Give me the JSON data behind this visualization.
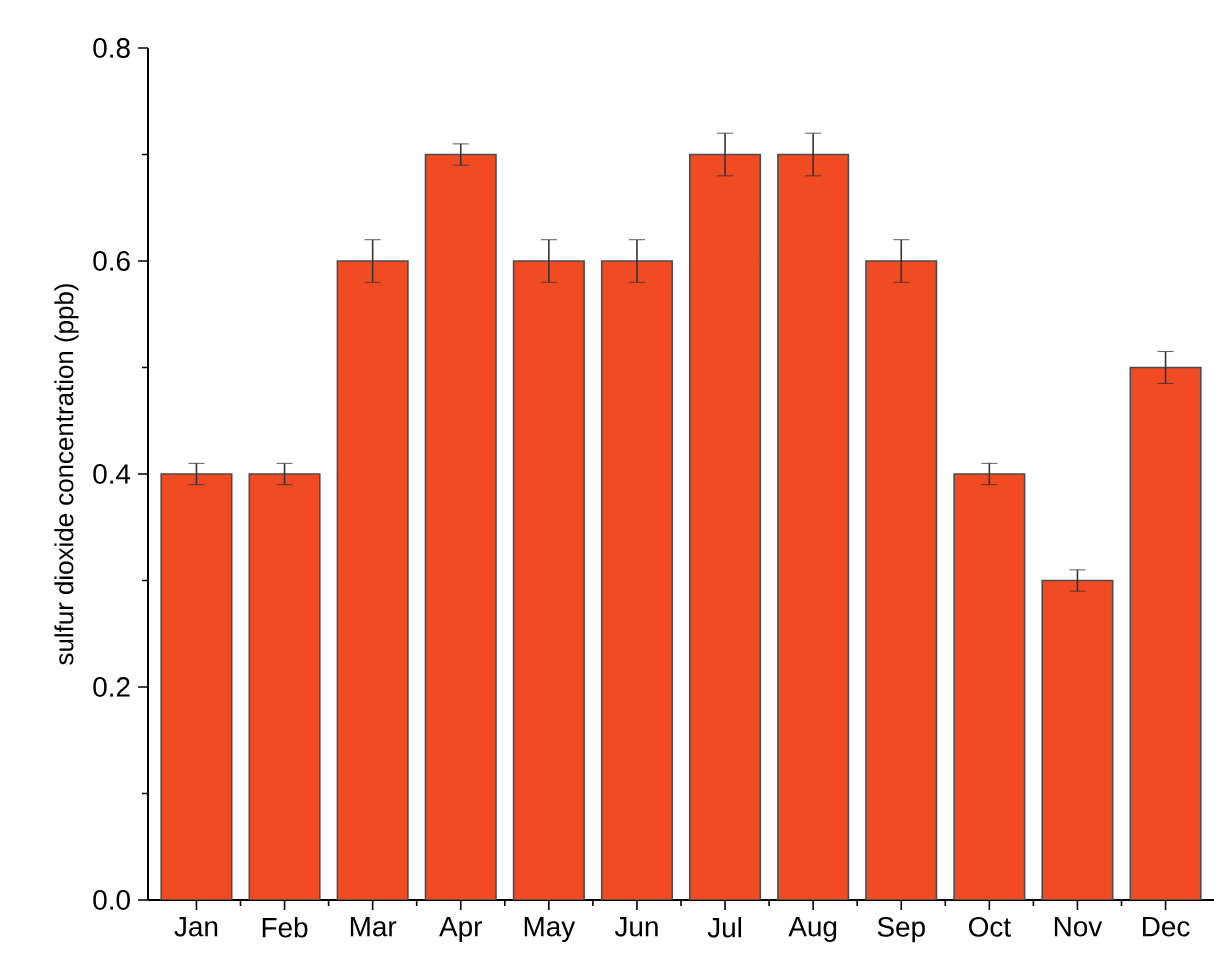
{
  "chart_data": {
    "type": "bar",
    "ylabel": "sulfur dioxide concentration (ppb)",
    "categories": [
      "Jan",
      "Feb",
      "Mar",
      "Apr",
      "May",
      "Jun",
      "Jul",
      "Aug",
      "Sep",
      "Oct",
      "Nov",
      "Dec"
    ],
    "values": [
      0.4,
      0.4,
      0.6,
      0.7,
      0.6,
      0.6,
      0.7,
      0.7,
      0.6,
      0.4,
      0.3,
      0.5
    ],
    "errors": [
      0.01,
      0.01,
      0.02,
      0.01,
      0.02,
      0.02,
      0.02,
      0.02,
      0.02,
      0.01,
      0.01,
      0.015
    ],
    "color": "#f04b23",
    "ylim": [
      0,
      0.8
    ],
    "yticks": [
      {
        "value": 0,
        "label": "0.0"
      },
      0.2,
      0.4,
      0.6,
      0.8
    ],
    "grid": false
  }
}
